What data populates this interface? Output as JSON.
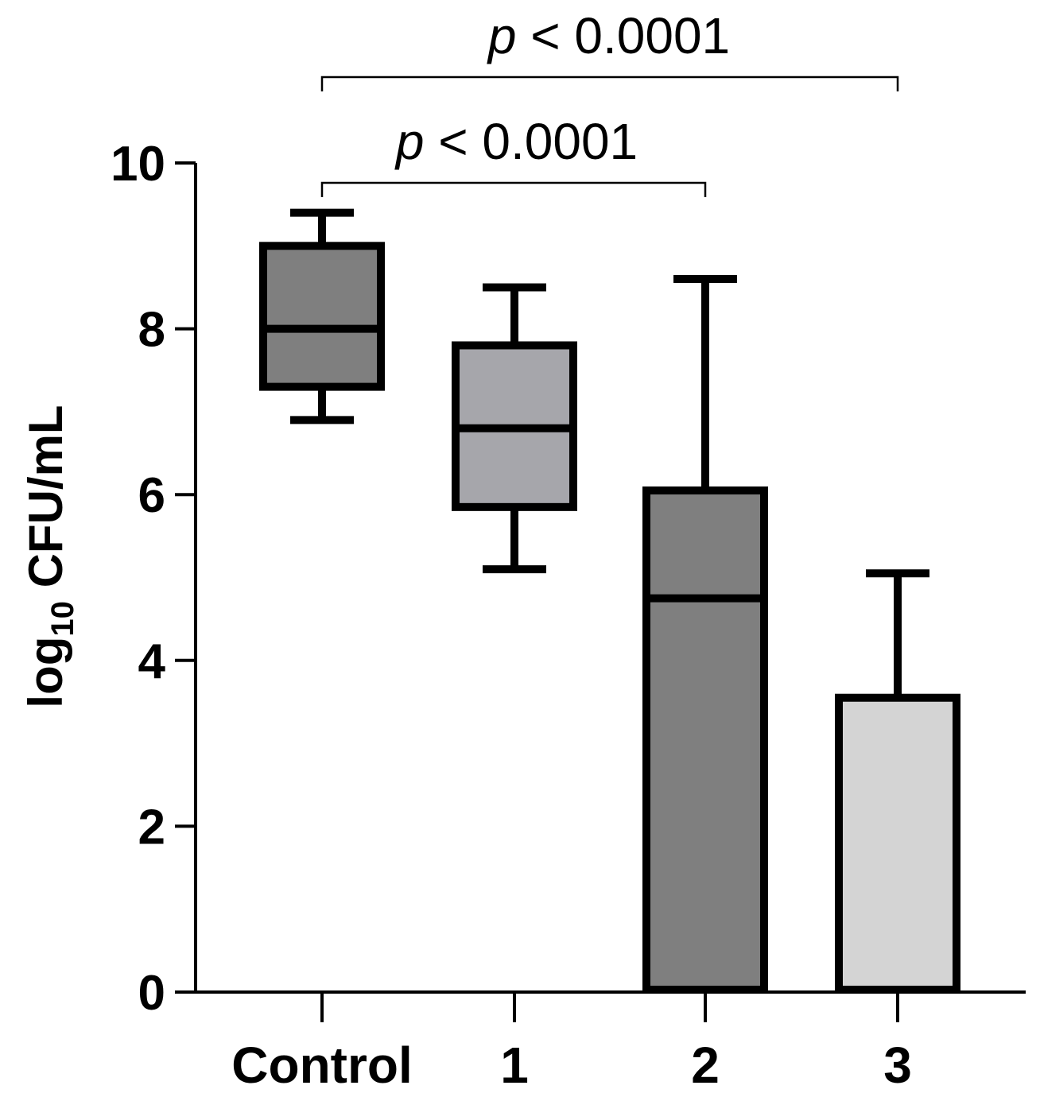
{
  "chart_data": {
    "type": "box",
    "title": "",
    "xlabel": "",
    "ylabel": {
      "prefix": "log",
      "subscript": "10",
      "suffix": " CFU/mL"
    },
    "ylim": [
      0,
      10
    ],
    "yticks": [
      "0",
      "2",
      "4",
      "6",
      "8",
      "10"
    ],
    "categories": [
      "Control",
      "1",
      "2",
      "3"
    ],
    "boxes": [
      {
        "category": "Control",
        "min": 6.9,
        "q1": 7.3,
        "median": 8.0,
        "q3": 9.0,
        "max": 9.4,
        "fill": "#7f7f7f"
      },
      {
        "category": "1",
        "min": 5.1,
        "q1": 5.85,
        "median": 6.8,
        "q3": 7.8,
        "max": 8.5,
        "fill": "#a6a6ab"
      },
      {
        "category": "2",
        "min": 0.0,
        "q1": 0.0,
        "median": 4.75,
        "q3": 6.05,
        "max": 8.6,
        "fill": "#7f7f7f"
      },
      {
        "category": "3",
        "min": 0.0,
        "q1": 0.0,
        "median": 0.0,
        "q3": 3.55,
        "max": 5.05,
        "fill": "#d4d4d4"
      }
    ],
    "annotations": [
      {
        "from": "Control",
        "to": "2",
        "p_symbol": "p",
        "text": " < 0.0001",
        "level": 1
      },
      {
        "from": "Control",
        "to": "3",
        "p_symbol": "p",
        "text": " < 0.0001",
        "level": 2
      }
    ],
    "grid": false,
    "legend": "none"
  }
}
